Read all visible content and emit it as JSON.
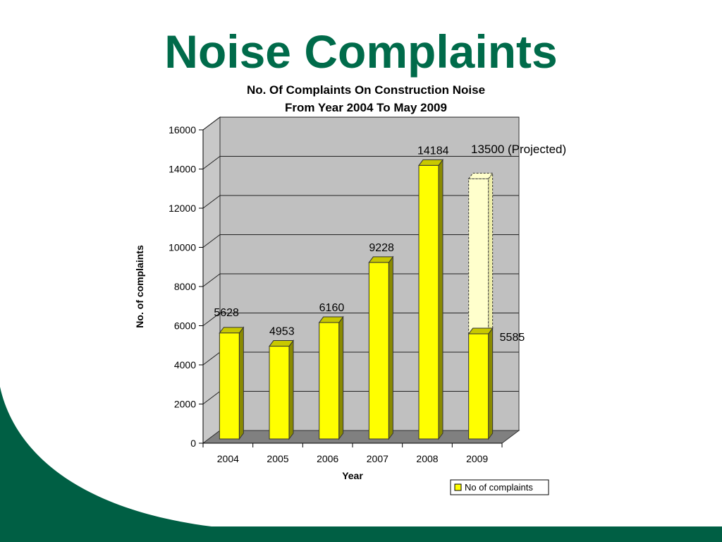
{
  "slide": {
    "title": "Noise Complaints"
  },
  "colors": {
    "title_green": "#006b4a",
    "decor_green": "#005f44",
    "bar_yellow": "#ffff00",
    "projected_fill": "#ffffcc"
  },
  "chart_data": {
    "type": "bar",
    "title": "No. Of Complaints On Construction Noise",
    "subtitle": "From Year 2004 To May 2009",
    "xlabel": "Year",
    "ylabel": "No. of complaints",
    "categories": [
      "2004",
      "2005",
      "2006",
      "2007",
      "2008",
      "2009"
    ],
    "series": [
      {
        "name": "No of complaints",
        "values": [
          5628,
          4953,
          6160,
          9228,
          14184,
          5585
        ],
        "color": "#ffff00"
      }
    ],
    "data_labels": [
      "5628",
      "4953",
      "6160",
      "9228",
      "14184",
      "5585"
    ],
    "projected": {
      "category": "2009",
      "value": 13500,
      "label_value": "13500",
      "label_note": "(Projected)"
    },
    "ylim": [
      0,
      16000
    ],
    "yticks": [
      0,
      2000,
      4000,
      6000,
      8000,
      10000,
      12000,
      14000,
      16000
    ],
    "ytick_labels": [
      "0",
      "2000",
      "4000",
      "6000",
      "8000",
      "10000",
      "12000",
      "14000",
      "16000"
    ],
    "grid": true,
    "legend": "bottom-right",
    "style": "3d-column"
  }
}
